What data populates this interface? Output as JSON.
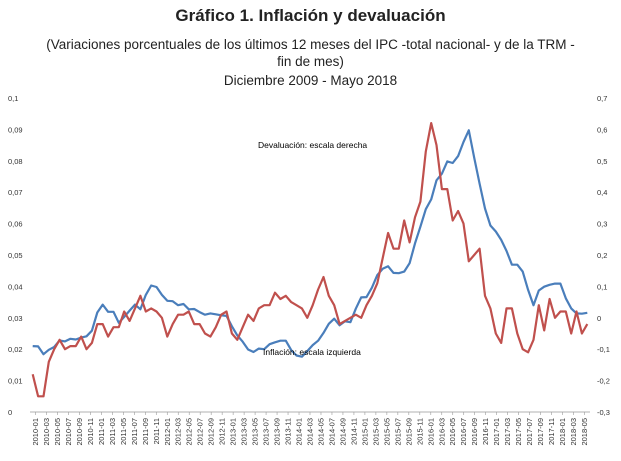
{
  "title": "Gráfico 1. Inflación y devaluación",
  "subtitle_line1": "(Variaciones porcentuales de los últimos 12 meses del IPC -total nacional- y de la TRM -fin de mes)",
  "subtitle_line2": "Diciembre 2009 - Mayo 2018",
  "chart_data": {
    "type": "line",
    "x_labels": [
      "2010-01",
      "2010-03",
      "2010-05",
      "2010-07",
      "2010-09",
      "2010-11",
      "2011-01",
      "2011-03",
      "2011-05",
      "2011-07",
      "2011-09",
      "2011-11",
      "2012-01",
      "2012-03",
      "2012-05",
      "2012-07",
      "2012-09",
      "2012-11",
      "2013-01",
      "2013-03",
      "2013-05",
      "2013-07",
      "2013-09",
      "2013-11",
      "2014-01",
      "2014-03",
      "2014-05",
      "2014-07",
      "2014-09",
      "2014-11",
      "2015-01",
      "2015-03",
      "2015-05",
      "2015-07",
      "2015-09",
      "2015-11",
      "2016-01",
      "2016-03",
      "2016-05",
      "2016-07",
      "2016-09",
      "2016-11",
      "2017-01",
      "2017-03",
      "2017-05",
      "2017-07",
      "2017-09",
      "2017-11",
      "2018-01",
      "2018-03",
      "2018-05"
    ],
    "y_left": {
      "ticks": [
        "0",
        "0,01",
        "0,02",
        "0,03",
        "0,04",
        "0,05",
        "0,06",
        "0,07",
        "0,08",
        "0,09",
        "0,1"
      ],
      "range": [
        0,
        0.1
      ]
    },
    "y_right": {
      "ticks": [
        "-0,3",
        "-0,2",
        "-0,1",
        "0",
        "0,1",
        "0,2",
        "0,3",
        "0,4",
        "0,5",
        "0,6",
        "0,7"
      ],
      "range": [
        -0.3,
        0.7
      ]
    },
    "annotations": {
      "devaluacion": "Devaluación: escala derecha",
      "inflacion": "Inflación: escala izquierda"
    },
    "series": [
      {
        "name": "Inflación",
        "axis": "left",
        "color": "#4a7ebb",
        "values": [
          0.021,
          0.0209,
          0.0184,
          0.0198,
          0.0207,
          0.0228,
          0.0225,
          0.0233,
          0.0231,
          0.0237,
          0.0241,
          0.0259,
          0.0317,
          0.0342,
          0.0319,
          0.0319,
          0.0284,
          0.0303,
          0.0323,
          0.0342,
          0.0327,
          0.0373,
          0.0403,
          0.0398,
          0.0373,
          0.0354,
          0.0353,
          0.034,
          0.0344,
          0.0327,
          0.0328,
          0.0318,
          0.031,
          0.0314,
          0.0311,
          0.0308,
          0.0306,
          0.0273,
          0.0244,
          0.0224,
          0.0199,
          0.0191,
          0.0202,
          0.02,
          0.0216,
          0.0222,
          0.0227,
          0.0227,
          0.0197,
          0.018,
          0.0176,
          0.0194,
          0.0213,
          0.0227,
          0.0252,
          0.0281,
          0.0297,
          0.0276,
          0.0289,
          0.0286,
          0.0329,
          0.0365,
          0.0366,
          0.0396,
          0.0436,
          0.0456,
          0.0464,
          0.0443,
          0.0442,
          0.0447,
          0.0474,
          0.0537,
          0.059,
          0.0646,
          0.0677,
          0.0738,
          0.0759,
          0.0798,
          0.0793,
          0.0815,
          0.086,
          0.0897,
          0.081,
          0.0727,
          0.0648,
          0.0594,
          0.0575,
          0.0548,
          0.0513,
          0.0469,
          0.0469,
          0.0447,
          0.0389,
          0.034,
          0.0387,
          0.0399,
          0.0405,
          0.0409,
          0.0409,
          0.0362,
          0.033,
          0.0314,
          0.0313,
          0.0316
        ]
      },
      {
        "name": "Devaluación",
        "axis": "right",
        "color": "#c0504d",
        "values": [
          -0.18,
          -0.25,
          -0.25,
          -0.14,
          -0.1,
          -0.07,
          -0.1,
          -0.09,
          -0.09,
          -0.06,
          -0.1,
          -0.08,
          -0.02,
          -0.02,
          -0.06,
          -0.03,
          -0.03,
          0.02,
          -0.01,
          0.03,
          0.07,
          0.02,
          0.03,
          0.02,
          0.0,
          -0.06,
          -0.02,
          0.01,
          0.01,
          0.02,
          -0.02,
          -0.02,
          -0.05,
          -0.06,
          -0.03,
          0.01,
          0.02,
          -0.05,
          -0.07,
          -0.03,
          0.01,
          -0.01,
          0.03,
          0.04,
          0.04,
          0.08,
          0.06,
          0.07,
          0.05,
          0.04,
          0.03,
          0.0,
          0.04,
          0.09,
          0.13,
          0.07,
          0.04,
          -0.02,
          -0.01,
          0.0,
          0.01,
          0.0,
          0.04,
          0.07,
          0.11,
          0.19,
          0.27,
          0.22,
          0.22,
          0.31,
          0.24,
          0.32,
          0.37,
          0.53,
          0.62,
          0.55,
          0.41,
          0.41,
          0.31,
          0.34,
          0.3,
          0.18,
          0.2,
          0.22,
          0.07,
          0.03,
          -0.05,
          -0.08,
          0.03,
          0.03,
          -0.05,
          -0.1,
          -0.11,
          -0.07,
          0.04,
          -0.04,
          0.06,
          0.0,
          0.02,
          0.02,
          -0.05,
          0.02,
          -0.05,
          -0.02
        ]
      }
    ]
  }
}
